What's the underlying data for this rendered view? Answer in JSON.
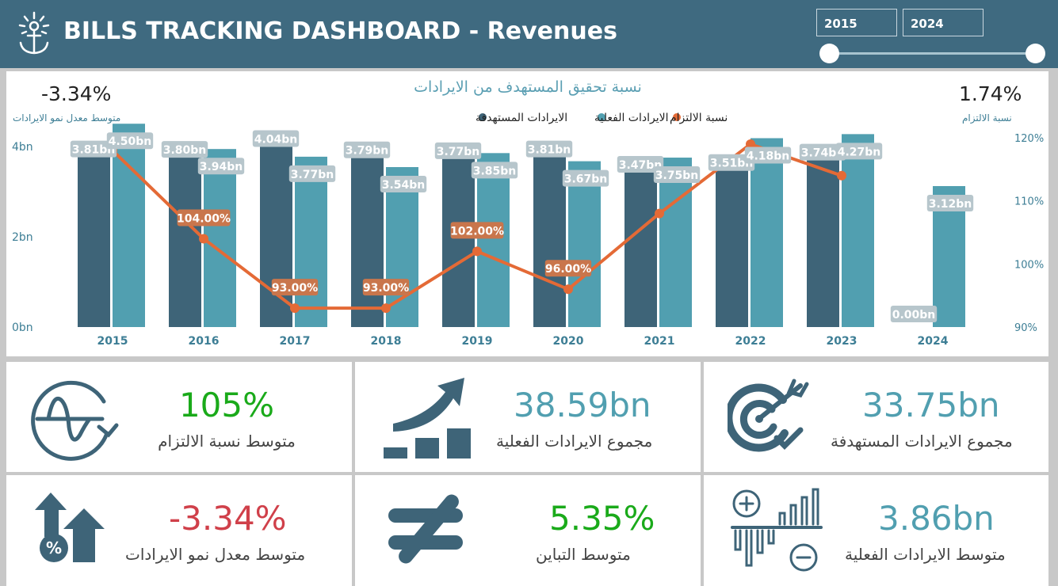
{
  "header": {
    "title": "BILLS TRACKING DASHBOARD - Revenues",
    "year_from": "2015",
    "year_to": "2024"
  },
  "stats": {
    "left_value": "-3.34%",
    "left_label": "متوسط معدل نمو الايرادات",
    "right_value": "1.74%",
    "right_label": "نسبة الالتزام"
  },
  "chart_data": {
    "type": "bar",
    "title": "نسبة تحقيق المستهدف من الايرادات",
    "categories": [
      "2015",
      "2016",
      "2017",
      "2018",
      "2019",
      "2020",
      "2021",
      "2022",
      "2023",
      "2024"
    ],
    "series": [
      {
        "name": "الايرادات المستهدفة",
        "kind": "bar",
        "color": "#3e6478",
        "values": [
          3.81,
          3.8,
          4.04,
          3.79,
          3.77,
          3.81,
          3.47,
          3.51,
          3.74,
          0.0
        ],
        "labels": [
          "3.81bn",
          "3.80bn",
          "4.04bn",
          "3.79bn",
          "3.77bn",
          "3.81bn",
          "3.47bn",
          "3.51bn",
          "3.74bn",
          "0.00bn"
        ]
      },
      {
        "name": "الايرادات الفعلية",
        "kind": "bar",
        "color": "#519fb0",
        "values": [
          4.5,
          3.94,
          3.77,
          3.54,
          3.85,
          3.67,
          3.75,
          4.18,
          4.27,
          3.12
        ],
        "labels": [
          "4.50bn",
          "3.94bn",
          "3.77bn",
          "3.54bn",
          "3.85bn",
          "3.67bn",
          "3.75bn",
          "4.18bn",
          "4.27bn",
          "3.12bn"
        ]
      },
      {
        "name": "نسبة الالتزام",
        "kind": "line",
        "color": "#e46a36",
        "values": [
          118,
          104,
          93,
          93,
          102,
          96,
          108,
          119,
          114,
          null
        ],
        "labels": [
          "",
          "104.00%",
          "93.00%",
          "93.00%",
          "102.00%",
          "96.00%",
          "",
          "",
          "",
          ""
        ]
      }
    ],
    "y_left": {
      "min": 0,
      "max": 5.1,
      "ticks": [
        0,
        2,
        4
      ],
      "tick_labels": [
        "0bn",
        "2bn",
        "4bn"
      ]
    },
    "y_right": {
      "min": 90,
      "max": 120,
      "ticks": [
        90,
        100,
        110,
        120
      ],
      "tick_labels": [
        "90%",
        "100%",
        "110%",
        "120%"
      ]
    },
    "grid": false,
    "legend_position": "top-center"
  },
  "kpis": [
    {
      "value": "33.75bn",
      "label": "مجموع الايرادات المستهدفة",
      "color": "#519fb0",
      "icon": "target-icon"
    },
    {
      "value": "38.59bn",
      "label": "مجموع الايرادات الفعلية",
      "color": "#519fb0",
      "icon": "growth-bars-icon"
    },
    {
      "value": "105%",
      "label": "متوسط نسبة الالتزام",
      "color": "#1aaa1a",
      "icon": "wave-cycle-icon"
    },
    {
      "value": "3.86bn",
      "label": "متوسط الايرادات الفعلية",
      "color": "#519fb0",
      "icon": "plus-minus-bars-icon"
    },
    {
      "value": "5.35%",
      "label": "متوسط التباين",
      "color": "#1aaa1a",
      "icon": "not-equal-icon"
    },
    {
      "value": "-3.34%",
      "label": "متوسط معدل نمو الايرادات",
      "color": "#d0404a",
      "icon": "percent-up-arrows-icon"
    }
  ],
  "colors": {
    "header": "#3f6a80",
    "target": "#3e6478",
    "actual": "#519fb0",
    "line": "#e46a36"
  }
}
